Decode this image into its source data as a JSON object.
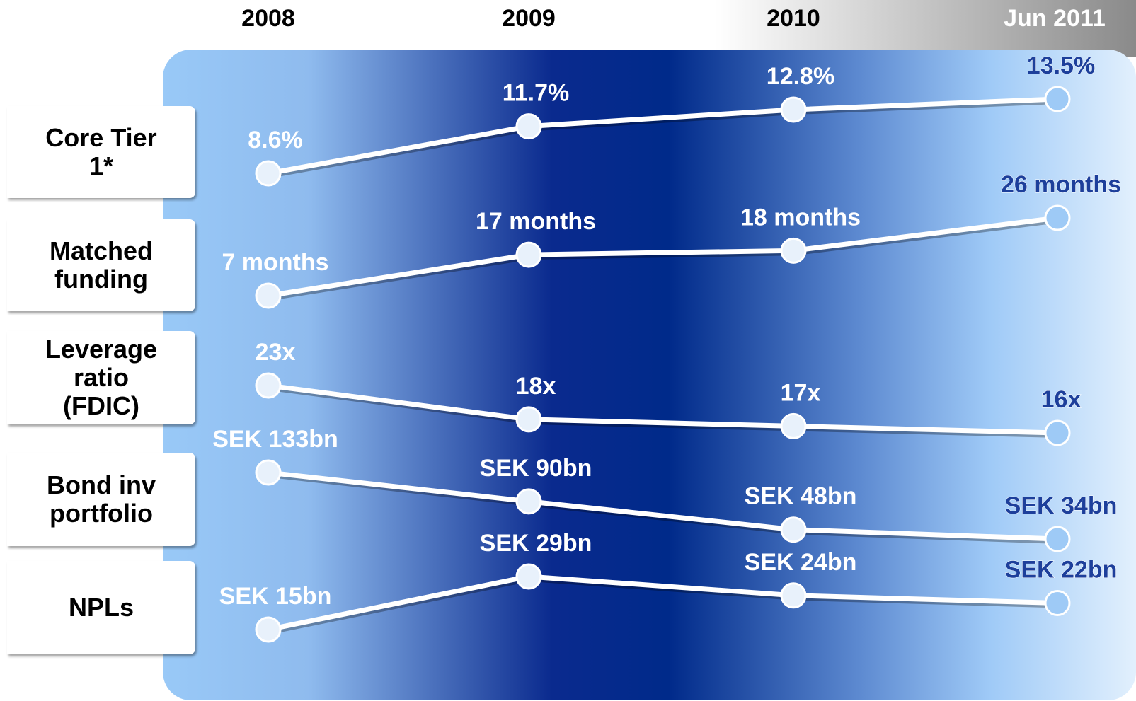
{
  "columns": [
    "2008",
    "2009",
    "2010",
    "Jun 2011"
  ],
  "rows": [
    {
      "label": "Core Tier 1*",
      "values": [
        8.6,
        11.7,
        12.8,
        13.5
      ],
      "value_labels": [
        "8.6%",
        "11.7%",
        "12.8%",
        "13.5%"
      ]
    },
    {
      "label": "Matched funding",
      "values": [
        7,
        17,
        18,
        26
      ],
      "value_labels": [
        "7 months",
        "17 months",
        "18 months",
        "26 months"
      ]
    },
    {
      "label": "Leverage ratio (FDIC)",
      "values": [
        23,
        18,
        17,
        16
      ],
      "value_labels": [
        "23x",
        "18x",
        "17x",
        "16x"
      ]
    },
    {
      "label": "Bond inv portfolio",
      "values": [
        133,
        90,
        48,
        34
      ],
      "value_labels": [
        "SEK 133bn",
        "SEK 90bn",
        "SEK 48bn",
        "SEK 34bn"
      ]
    },
    {
      "label": "NPLs",
      "values": [
        15,
        29,
        24,
        22
      ],
      "value_labels": [
        "SEK 15bn",
        "SEK 29bn",
        "SEK 24bn",
        "SEK 22bn"
      ]
    }
  ]
}
